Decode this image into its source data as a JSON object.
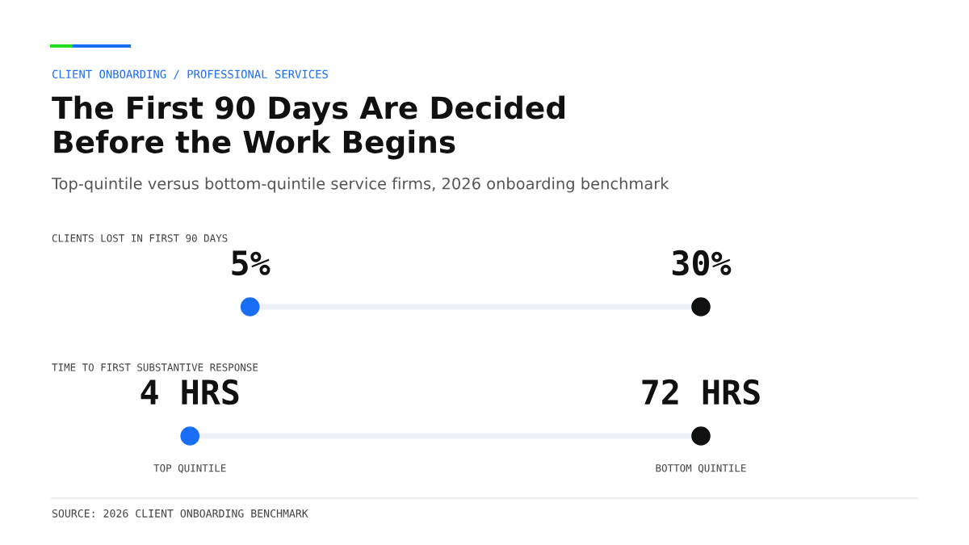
{
  "chart_data": [
    {
      "type": "other",
      "title": "The First 90 Days Are Decided\nBefore the Work Begins",
      "subtitle": "Top-quintile versus bottom-quintile service firms, 2026 onboarding benchmark",
      "annotations": [
        "CLIENT ONBOARDING / PROFESSIONAL SERVICES",
        "CLIENTS LOST IN FIRST 90 DAYS"
      ],
      "categories": [
        null,
        null
      ],
      "values": [
        5,
        30
      ],
      "colors": [
        "#1a6ef5",
        "#111111"
      ],
      "value_labels": [
        "5%",
        "30%"
      ]
    },
    {
      "type": "other",
      "title": "TIME TO FIRST SUBSTANTIVE RESPONSE",
      "annotations": [
        "SOURCE: 2026 CLIENT ONBOARDING BENCHMARK"
      ],
      "categories": [
        "TOP QUINTILE",
        "BOTTOM QUINTILE"
      ],
      "values": [
        4,
        72
      ],
      "colors": [
        "#1a6ef5",
        "#111111"
      ],
      "value_labels": [
        "4 HRS",
        "72 HRS"
      ]
    }
  ]
}
